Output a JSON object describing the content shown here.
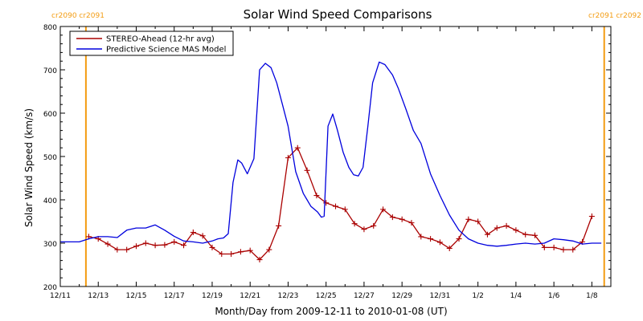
{
  "chart_data": {
    "type": "line",
    "title": "Solar Wind Speed Comparisons",
    "xlabel": "Month/Day from 2009-12-11 to 2010-01-08 (UT)",
    "ylabel": "Solar Wind Speed (km/s)",
    "xlim": [
      "2009-12-11",
      "2010-01-08"
    ],
    "ylim": [
      200,
      800
    ],
    "y_ticks": [
      200,
      300,
      400,
      500,
      600,
      700,
      800
    ],
    "x_ticks": [
      {
        "x": 0,
        "label": "12/11"
      },
      {
        "x": 2,
        "label": "12/13"
      },
      {
        "x": 4,
        "label": "12/15"
      },
      {
        "x": 6,
        "label": "12/17"
      },
      {
        "x": 8,
        "label": "12/19"
      },
      {
        "x": 10,
        "label": "12/21"
      },
      {
        "x": 12,
        "label": "12/23"
      },
      {
        "x": 14,
        "label": "12/25"
      },
      {
        "x": 16,
        "label": "12/27"
      },
      {
        "x": 18,
        "label": "12/29"
      },
      {
        "x": 20,
        "label": "12/31"
      },
      {
        "x": 22,
        "label": "1/2"
      },
      {
        "x": 24,
        "label": "1/4"
      },
      {
        "x": 26,
        "label": "1/6"
      },
      {
        "x": 28,
        "label": "1/8"
      }
    ],
    "legend": {
      "placement": "top-left",
      "entries": [
        "STEREO-Ahead (12-hr avg)",
        "Predictive Science MAS Model"
      ]
    },
    "markers": [
      {
        "x": 1.35,
        "label_left": "cr2090",
        "label_right": "cr2091",
        "label_position": "top-left",
        "color": "#f39c12"
      },
      {
        "x": 28.65,
        "label_left": "cr2091",
        "label_right": "cr2092",
        "label_position": "top-right",
        "color": "#f39c12"
      }
    ],
    "series": [
      {
        "name": "STEREO-Ahead (12-hr avg)",
        "color": "#aa0000",
        "marker": "plus",
        "x": [
          1.5,
          2.0,
          2.5,
          3.0,
          3.5,
          4.0,
          4.5,
          5.0,
          5.5,
          6.0,
          6.5,
          7.0,
          7.5,
          8.0,
          8.5,
          9.0,
          9.5,
          10.0,
          10.5,
          11.0,
          11.5,
          12.0,
          12.5,
          13.0,
          13.5,
          14.0,
          14.5,
          15.0,
          15.5,
          16.0,
          16.5,
          17.0,
          17.5,
          18.0,
          18.5,
          19.0,
          19.5,
          20.0,
          20.5,
          21.0,
          21.5,
          22.0,
          22.5,
          23.0,
          23.5,
          24.0,
          24.5,
          25.0,
          25.5,
          26.0,
          26.5,
          27.0,
          27.5,
          28.0
        ],
        "y": [
          315,
          310,
          298,
          285,
          285,
          293,
          300,
          295,
          296,
          303,
          295,
          325,
          317,
          290,
          275,
          275,
          280,
          283,
          262,
          285,
          340,
          497,
          520,
          468,
          410,
          393,
          385,
          378,
          345,
          332,
          340,
          378,
          360,
          355,
          347,
          315,
          310,
          302,
          288,
          310,
          355,
          350,
          320,
          335,
          340,
          330,
          320,
          318,
          290,
          290,
          285,
          285,
          303,
          362
        ]
      },
      {
        "name": "Predictive Science MAS Model",
        "color": "#0000dd",
        "marker": "none",
        "x": [
          0,
          0.5,
          1.0,
          1.5,
          2.0,
          2.5,
          3.0,
          3.5,
          4.0,
          4.5,
          5.0,
          5.5,
          6.0,
          6.5,
          7.0,
          7.5,
          8.0,
          8.3,
          8.6,
          8.85,
          9.1,
          9.35,
          9.55,
          9.85,
          10.2,
          10.5,
          10.8,
          11.1,
          11.4,
          11.7,
          12.0,
          12.4,
          12.8,
          13.2,
          13.55,
          13.75,
          13.9,
          14.1,
          14.35,
          14.6,
          14.9,
          15.2,
          15.45,
          15.7,
          15.95,
          16.2,
          16.45,
          16.8,
          17.1,
          17.5,
          17.8,
          18.2,
          18.6,
          19.0,
          19.5,
          20.0,
          20.5,
          21.0,
          21.5,
          22.0,
          22.5,
          23.0,
          23.5,
          24.0,
          24.5,
          25.0,
          25.5,
          26.0,
          26.5,
          27.0,
          27.5,
          28.0,
          28.5
        ],
        "y": [
          303,
          303,
          303,
          310,
          315,
          315,
          313,
          330,
          335,
          335,
          342,
          330,
          316,
          305,
          303,
          300,
          305,
          310,
          312,
          322,
          440,
          492,
          485,
          460,
          495,
          700,
          715,
          705,
          670,
          620,
          570,
          465,
          415,
          385,
          372,
          360,
          362,
          570,
          598,
          560,
          510,
          475,
          458,
          455,
          475,
          570,
          670,
          718,
          712,
          688,
          658,
          610,
          560,
          530,
          460,
          410,
          365,
          330,
          310,
          300,
          295,
          293,
          295,
          298,
          300,
          298,
          300,
          310,
          308,
          305,
          298,
          300,
          300
        ]
      }
    ]
  }
}
